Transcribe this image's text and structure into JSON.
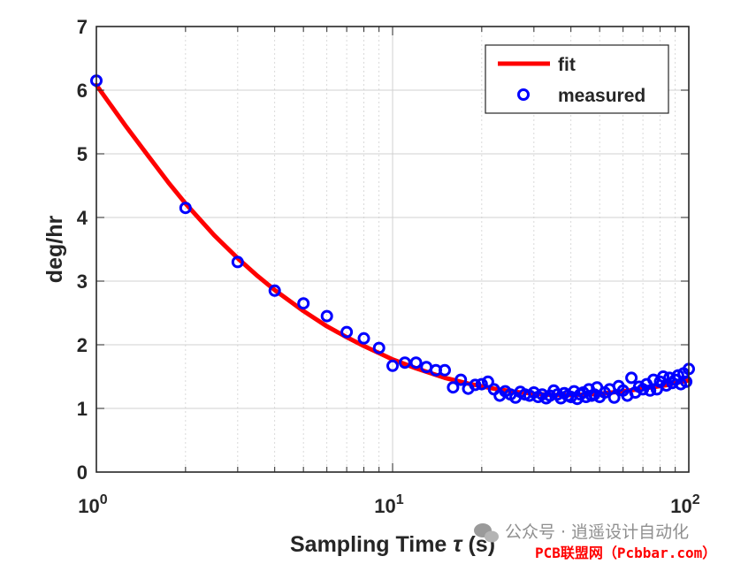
{
  "chart_data": {
    "type": "line",
    "xscale": "log",
    "xlim": [
      1,
      100
    ],
    "ylim": [
      0,
      7
    ],
    "grid": true,
    "legend_position": "top-right",
    "xlabel_prefix": "Sampling Time ",
    "xlabel_symbol": "τ",
    "xlabel_suffix": " (s)",
    "ylabel": "deg/hr",
    "y_ticks": [
      "0",
      "1",
      "2",
      "3",
      "4",
      "5",
      "6",
      "7"
    ],
    "x_ticks": [
      {
        "value": 1,
        "base": "10",
        "exp": "0"
      },
      {
        "value": 10,
        "base": "10",
        "exp": "1"
      },
      {
        "value": 100,
        "base": "10",
        "exp": "2"
      }
    ],
    "series": [
      {
        "name": "fit",
        "style": "line",
        "color": "#ff0000",
        "x": [
          1,
          1.25,
          1.5,
          1.75,
          2,
          2.5,
          3,
          3.5,
          4,
          5,
          6,
          7,
          8,
          9,
          10,
          12,
          15,
          18,
          22,
          26,
          30,
          35,
          40,
          45,
          50,
          55,
          60,
          65,
          70,
          75,
          80,
          85,
          90,
          95,
          100
        ],
        "y": [
          6.08,
          5.45,
          4.96,
          4.55,
          4.22,
          3.72,
          3.36,
          3.08,
          2.86,
          2.53,
          2.29,
          2.12,
          1.98,
          1.87,
          1.77,
          1.63,
          1.48,
          1.39,
          1.31,
          1.26,
          1.23,
          1.21,
          1.21,
          1.22,
          1.23,
          1.25,
          1.27,
          1.29,
          1.31,
          1.33,
          1.35,
          1.37,
          1.4,
          1.42,
          1.44
        ]
      },
      {
        "name": "measured",
        "style": "marker",
        "color": "#0000ff",
        "x": [
          1,
          2,
          3,
          4,
          5,
          6,
          7,
          8,
          9,
          10,
          11,
          12,
          13,
          14,
          15,
          16,
          17,
          18,
          19,
          20,
          21,
          22,
          23,
          24,
          25,
          26,
          27,
          28,
          29,
          30,
          31,
          32,
          33,
          34,
          35,
          36,
          37,
          38,
          39,
          40,
          41,
          42,
          43,
          44,
          45,
          46,
          47,
          48,
          49,
          50,
          52,
          54,
          56,
          58,
          60,
          62,
          64,
          66,
          68,
          70,
          72,
          74,
          76,
          78,
          80,
          82,
          84,
          86,
          88,
          90,
          92,
          94,
          96,
          98,
          100
        ],
        "y": [
          6.15,
          4.15,
          3.3,
          2.85,
          2.65,
          2.45,
          2.2,
          2.1,
          1.95,
          1.67,
          1.72,
          1.72,
          1.65,
          1.6,
          1.6,
          1.33,
          1.45,
          1.31,
          1.37,
          1.38,
          1.42,
          1.3,
          1.2,
          1.27,
          1.22,
          1.17,
          1.26,
          1.22,
          1.2,
          1.25,
          1.18,
          1.22,
          1.16,
          1.2,
          1.28,
          1.22,
          1.16,
          1.24,
          1.2,
          1.18,
          1.27,
          1.15,
          1.22,
          1.25,
          1.18,
          1.3,
          1.2,
          1.22,
          1.33,
          1.18,
          1.25,
          1.3,
          1.17,
          1.35,
          1.28,
          1.2,
          1.48,
          1.25,
          1.34,
          1.3,
          1.38,
          1.28,
          1.45,
          1.3,
          1.42,
          1.5,
          1.36,
          1.48,
          1.4,
          1.45,
          1.52,
          1.38,
          1.55,
          1.42,
          1.62
        ]
      }
    ]
  },
  "legend": {
    "fit_label": "fit",
    "measured_label": "measured"
  },
  "watermark": {
    "text": "公众号 · 逍遥设计自动化",
    "icon": "wechat-icon",
    "brand": "PCB联盟网（Pcbbar.com）"
  }
}
